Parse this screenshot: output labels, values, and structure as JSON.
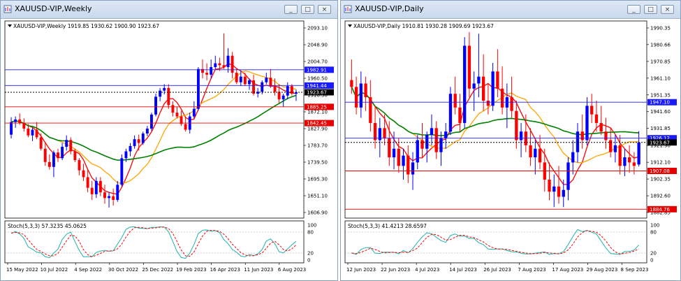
{
  "charts": [
    {
      "id": "left",
      "window_title": "XAUUSD-VIP,Weekly",
      "header": "XAUUSD-VIP,Weekly  1919.85 1930.62 1900.90 1923.67",
      "stoch_label": "Stoch(5,3,3) 57.3235 45.0625",
      "controls": {
        "minimize": "_",
        "restore": "□",
        "close": "×"
      },
      "price_ticks": [
        "2093.10",
        "2048.90",
        "2004.70",
        "1960.50",
        "1916.30",
        "1872.10",
        "1827.90",
        "1783.70",
        "1739.50",
        "1695.30",
        "1651.10",
        "1606.90"
      ],
      "stoch_ticks": [
        "100",
        "80",
        "20",
        "0"
      ],
      "date_ticks": [
        "15 May 2022",
        "10 Jul 2022",
        "4 Sep 2022",
        "30 Oct 2022",
        "25 Dec 2022",
        "19 Feb 2023",
        "16 Apr 2023",
        "11 Jun 2023",
        "6 Aug 2023"
      ],
      "levels": [
        {
          "label": "1982.91",
          "value": 1982.91,
          "color": "#1a1aff"
        },
        {
          "label": "1941.44",
          "value": 1941.44,
          "color": "#1a1aff"
        },
        {
          "label": "1923.67",
          "value": 1923.67,
          "color": "#000000"
        },
        {
          "label": "1885.25",
          "value": 1885.25,
          "color": "#e60000"
        },
        {
          "label": "1842.45",
          "value": 1842.45,
          "color": "#e60000"
        }
      ]
    },
    {
      "id": "right",
      "window_title": "XAUUSD-VIP,Daily",
      "header": "XAUUSD-VIP,Daily  1910.81 1930.28 1909.69 1923.67",
      "stoch_label": "Stoch(5,3,3) 41.4213 28.6597",
      "controls": {
        "minimize": "_",
        "restore": "□",
        "close": "×"
      },
      "price_ticks": [
        "1990.35",
        "1980.66",
        "1970.85",
        "1961.10",
        "1951.35",
        "1941.60",
        "1931.85",
        "1921.90",
        "1912.10",
        "1902.35",
        "1892.60",
        "1882.85"
      ],
      "stoch_ticks": [
        "100",
        "80",
        "20",
        "0"
      ],
      "date_ticks": [
        "12 Jun 2023",
        "22 Jun 2023",
        "4 Jul 2023",
        "14 Jul 2023",
        "26 Jul 2023",
        "7 Aug 2023",
        "17 Aug 2023",
        "29 Aug 2023",
        "8 Sep 2023"
      ],
      "levels": [
        {
          "label": "1947.10",
          "value": 1947.1,
          "color": "#1a1aff"
        },
        {
          "label": "1926.12",
          "value": 1926.12,
          "color": "#1a1aff"
        },
        {
          "label": "1923.67",
          "value": 1923.67,
          "color": "#000000"
        },
        {
          "label": "1907.08",
          "value": 1907.08,
          "color": "#e60000"
        },
        {
          "label": "1884.76",
          "value": 1884.76,
          "color": "#e60000"
        }
      ]
    }
  ],
  "colors": {
    "bull": "#0000ff",
    "bear": "#ff0000",
    "ma_fast": "#ff0000",
    "ma_mid": "#ffa500",
    "ma_slow": "#008000",
    "stoch_main": "#20b2aa",
    "stoch_signal": "#ff0000"
  },
  "chart_data": [
    {
      "type": "candlestick",
      "title": "XAUUSD-VIP,Weekly",
      "ylim": [
        1606.9,
        2093.1
      ],
      "x_ticks": [
        "15 May 2022",
        "10 Jul 2022",
        "4 Sep 2022",
        "30 Oct 2022",
        "25 Dec 2022",
        "19 Feb 2023",
        "16 Apr 2023",
        "11 Jun 2023",
        "6 Aug 2023"
      ],
      "last": {
        "open": 1919.85,
        "high": 1930.62,
        "low": 1900.9,
        "close": 1923.67
      },
      "ohlc": [
        [
          1812,
          1858,
          1802,
          1845
        ],
        [
          1845,
          1860,
          1830,
          1852
        ],
        [
          1852,
          1868,
          1838,
          1842
        ],
        [
          1842,
          1855,
          1820,
          1828
        ],
        [
          1828,
          1840,
          1805,
          1810
        ],
        [
          1810,
          1830,
          1795,
          1825
        ],
        [
          1825,
          1845,
          1800,
          1805
        ],
        [
          1805,
          1815,
          1770,
          1775
        ],
        [
          1775,
          1790,
          1730,
          1740
        ],
        [
          1740,
          1760,
          1720,
          1727
        ],
        [
          1727,
          1770,
          1700,
          1765
        ],
        [
          1765,
          1775,
          1740,
          1750
        ],
        [
          1750,
          1790,
          1745,
          1780
        ],
        [
          1780,
          1810,
          1770,
          1798
        ],
        [
          1798,
          1805,
          1760,
          1768
        ],
        [
          1768,
          1775,
          1740,
          1745
        ],
        [
          1745,
          1750,
          1705,
          1718
        ],
        [
          1718,
          1735,
          1690,
          1700
        ],
        [
          1700,
          1720,
          1660,
          1672
        ],
        [
          1672,
          1690,
          1640,
          1655
        ],
        [
          1655,
          1700,
          1645,
          1690
        ],
        [
          1690,
          1700,
          1650,
          1660
        ],
        [
          1660,
          1680,
          1630,
          1645
        ],
        [
          1645,
          1660,
          1620,
          1650
        ],
        [
          1650,
          1670,
          1625,
          1640
        ],
        [
          1640,
          1690,
          1635,
          1680
        ],
        [
          1680,
          1760,
          1675,
          1750
        ],
        [
          1750,
          1775,
          1740,
          1768
        ],
        [
          1768,
          1790,
          1755,
          1782
        ],
        [
          1782,
          1810,
          1775,
          1800
        ],
        [
          1800,
          1812,
          1770,
          1790
        ],
        [
          1790,
          1820,
          1785,
          1815
        ],
        [
          1815,
          1835,
          1808,
          1828
        ],
        [
          1828,
          1870,
          1822,
          1865
        ],
        [
          1865,
          1920,
          1860,
          1912
        ],
        [
          1912,
          1935,
          1900,
          1928
        ],
        [
          1928,
          1945,
          1918,
          1935
        ],
        [
          1935,
          1945,
          1880,
          1890
        ],
        [
          1890,
          1900,
          1860,
          1870
        ],
        [
          1870,
          1885,
          1855,
          1860
        ],
        [
          1860,
          1875,
          1835,
          1840
        ],
        [
          1840,
          1860,
          1820,
          1825
        ],
        [
          1825,
          1870,
          1815,
          1860
        ],
        [
          1860,
          1900,
          1855,
          1880
        ],
        [
          1880,
          1990,
          1875,
          1985
        ],
        [
          1985,
          2010,
          1960,
          1975
        ],
        [
          1975,
          2000,
          1955,
          1970
        ],
        [
          1970,
          2010,
          1960,
          1990
        ],
        [
          1990,
          2020,
          1985,
          2000
        ],
        [
          2000,
          2015,
          1980,
          1995
        ],
        [
          1995,
          2079,
          1985,
          1990
        ],
        [
          1990,
          2040,
          1975,
          2020
        ],
        [
          2020,
          2030,
          1960,
          1975
        ],
        [
          1975,
          1985,
          1945,
          1950
        ],
        [
          1950,
          1980,
          1940,
          1965
        ],
        [
          1965,
          1975,
          1940,
          1945
        ],
        [
          1945,
          1960,
          1930,
          1955
        ],
        [
          1955,
          1970,
          1915,
          1920
        ],
        [
          1920,
          1935,
          1910,
          1925
        ],
        [
          1925,
          1955,
          1918,
          1950
        ],
        [
          1950,
          1975,
          1945,
          1962
        ],
        [
          1962,
          1985,
          1935,
          1940
        ],
        [
          1940,
          1960,
          1915,
          1925
        ],
        [
          1925,
          1945,
          1895,
          1905
        ],
        [
          1905,
          1920,
          1885,
          1915
        ],
        [
          1915,
          1950,
          1905,
          1940
        ],
        [
          1940,
          1945,
          1915,
          1920
        ],
        [
          1919.85,
          1930.62,
          1900.9,
          1923.67
        ]
      ]
    },
    {
      "type": "candlestick",
      "title": "XAUUSD-VIP,Daily",
      "ylim": [
        1882.85,
        1990.35
      ],
      "x_ticks": [
        "12 Jun 2023",
        "22 Jun 2023",
        "4 Jul 2023",
        "14 Jul 2023",
        "26 Jul 2023",
        "7 Aug 2023",
        "17 Aug 2023",
        "29 Aug 2023",
        "8 Sep 2023"
      ],
      "last": {
        "open": 1910.81,
        "high": 1930.28,
        "low": 1909.69,
        "close": 1923.67
      },
      "ohlc": [
        [
          1960,
          1972,
          1952,
          1956
        ],
        [
          1956,
          1962,
          1940,
          1944
        ],
        [
          1944,
          1965,
          1938,
          1958
        ],
        [
          1958,
          1962,
          1942,
          1950
        ],
        [
          1950,
          1960,
          1930,
          1935
        ],
        [
          1935,
          1945,
          1920,
          1925
        ],
        [
          1925,
          1938,
          1915,
          1932
        ],
        [
          1932,
          1940,
          1922,
          1926
        ],
        [
          1926,
          1936,
          1910,
          1915
        ],
        [
          1915,
          1930,
          1908,
          1920
        ],
        [
          1920,
          1926,
          1906,
          1910
        ],
        [
          1910,
          1920,
          1902,
          1916
        ],
        [
          1916,
          1922,
          1900,
          1905
        ],
        [
          1905,
          1918,
          1896,
          1912
        ],
        [
          1912,
          1928,
          1908,
          1925
        ],
        [
          1925,
          1935,
          1915,
          1920
        ],
        [
          1920,
          1930,
          1912,
          1928
        ],
        [
          1928,
          1940,
          1922,
          1932
        ],
        [
          1932,
          1936,
          1914,
          1918
        ],
        [
          1918,
          1930,
          1910,
          1926
        ],
        [
          1926,
          1935,
          1920,
          1930
        ],
        [
          1930,
          1956,
          1928,
          1952
        ],
        [
          1952,
          1962,
          1940,
          1944
        ],
        [
          1944,
          1952,
          1930,
          1935
        ],
        [
          1935,
          1985,
          1932,
          1980
        ],
        [
          1980,
          1988,
          1950,
          1955
        ],
        [
          1955,
          1965,
          1942,
          1958
        ],
        [
          1958,
          1987,
          1950,
          1962
        ],
        [
          1962,
          1975,
          1942,
          1948
        ],
        [
          1948,
          1958,
          1940,
          1945
        ],
        [
          1945,
          1970,
          1942,
          1965
        ],
        [
          1965,
          1978,
          1950,
          1955
        ],
        [
          1955,
          1968,
          1940,
          1944
        ],
        [
          1944,
          1958,
          1932,
          1950
        ],
        [
          1950,
          1962,
          1938,
          1942
        ],
        [
          1942,
          1948,
          1920,
          1925
        ],
        [
          1925,
          1935,
          1915,
          1930
        ],
        [
          1930,
          1940,
          1918,
          1922
        ],
        [
          1922,
          1932,
          1910,
          1915
        ],
        [
          1915,
          1925,
          1905,
          1920
        ],
        [
          1920,
          1928,
          1908,
          1912
        ],
        [
          1912,
          1920,
          1895,
          1902
        ],
        [
          1902,
          1912,
          1890,
          1895
        ],
        [
          1895,
          1905,
          1886,
          1898
        ],
        [
          1898,
          1910,
          1888,
          1892
        ],
        [
          1892,
          1902,
          1886,
          1896
        ],
        [
          1896,
          1915,
          1890,
          1912
        ],
        [
          1912,
          1925,
          1905,
          1918
        ],
        [
          1918,
          1935,
          1912,
          1930
        ],
        [
          1930,
          1940,
          1920,
          1925
        ],
        [
          1925,
          1950,
          1922,
          1945
        ],
        [
          1945,
          1952,
          1935,
          1940
        ],
        [
          1940,
          1948,
          1930,
          1935
        ],
        [
          1935,
          1945,
          1928,
          1930
        ],
        [
          1930,
          1938,
          1920,
          1925
        ],
        [
          1925,
          1932,
          1915,
          1918
        ],
        [
          1918,
          1928,
          1912,
          1922
        ],
        [
          1922,
          1928,
          1905,
          1910
        ],
        [
          1910,
          1920,
          1904,
          1915
        ],
        [
          1915,
          1922,
          1906,
          1912
        ],
        [
          1912,
          1918,
          1905,
          1910
        ],
        [
          1910.81,
          1930.28,
          1909.69,
          1923.67
        ]
      ]
    }
  ]
}
